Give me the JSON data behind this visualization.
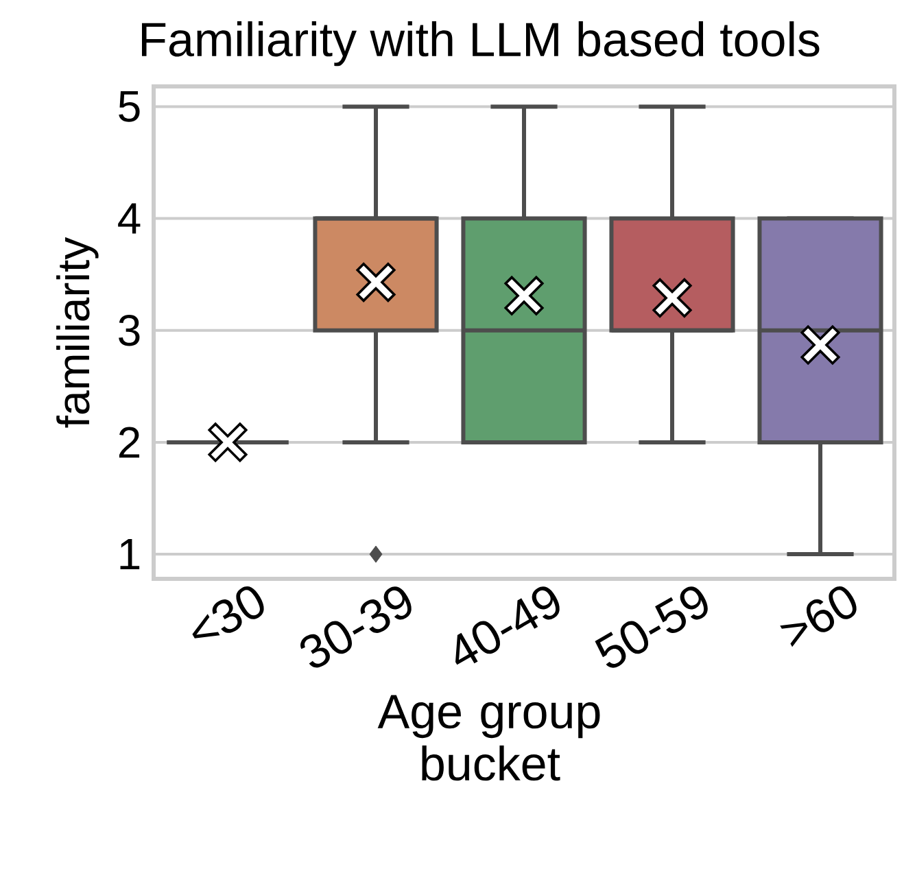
{
  "chart_data": {
    "type": "box",
    "title": "Familiarity with LLM based tools",
    "xlabel": "Age group bucket",
    "ylabel": "familiarity",
    "categories": [
      "<30",
      "30-39",
      "40-49",
      "50-59",
      ">60"
    ],
    "colors": [
      "#4d4d4d",
      "#cc8963",
      "#5f9e6e",
      "#b55d60",
      "#857aab"
    ],
    "boxes": [
      {
        "low": 2,
        "q1": 2,
        "median": 2,
        "q3": 2,
        "high": 2,
        "mean": 2.0
      },
      {
        "low": 2,
        "q1": 3,
        "median": 4,
        "q3": 4,
        "high": 5,
        "mean": 3.43,
        "outliers": [
          1
        ]
      },
      {
        "low": 2,
        "q1": 2,
        "median": 3,
        "q3": 4,
        "high": 5,
        "mean": 3.31
      },
      {
        "low": 2,
        "q1": 3,
        "median": 3,
        "q3": 4,
        "high": 5,
        "mean": 3.29
      },
      {
        "low": 1,
        "q1": 2,
        "median": 3,
        "q3": 4,
        "high": 4,
        "mean": 2.87
      }
    ],
    "ylim": [
      0.78,
      5.18
    ],
    "yticks": [
      1,
      2,
      3,
      4,
      5
    ],
    "grid": "y"
  }
}
